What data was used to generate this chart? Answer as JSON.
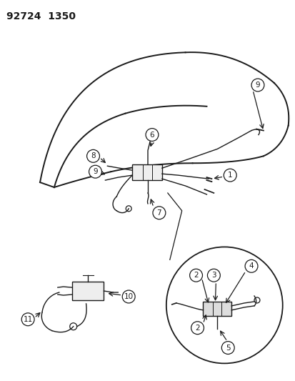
{
  "title": "92724  1350",
  "bg_color": "#ffffff",
  "line_color": "#1a1a1a",
  "title_fontsize": 10,
  "fig_width": 4.14,
  "fig_height": 5.33,
  "dpi": 100
}
